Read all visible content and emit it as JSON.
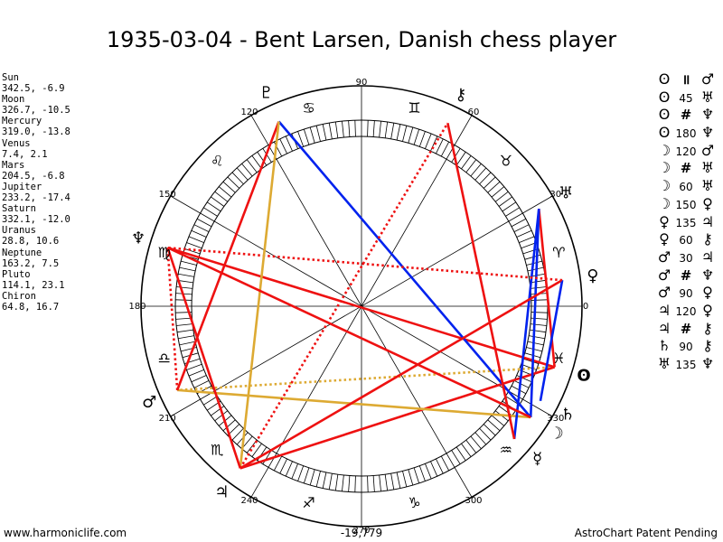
{
  "title": "1935-03-04 - Bent Larsen, Danish chess player",
  "planets": [
    {
      "name": "Sun",
      "values": "342.5, -6.9",
      "lon": 342.5,
      "glyph": "sun-icon"
    },
    {
      "name": "Moon",
      "values": "326.7, -10.5",
      "lon": 326.7,
      "glyph": "moon-icon"
    },
    {
      "name": "Mercury",
      "values": "319.0, -13.8",
      "lon": 319.0,
      "glyph": "mercury-icon"
    },
    {
      "name": "Venus",
      "values": "7.4, 2.1",
      "lon": 7.4,
      "glyph": "venus-icon"
    },
    {
      "name": "Mars",
      "values": "204.5, -6.8",
      "lon": 204.5,
      "glyph": "mars-icon"
    },
    {
      "name": "Jupiter",
      "values": "233.2, -17.4",
      "lon": 233.2,
      "glyph": "jupiter-icon"
    },
    {
      "name": "Saturn",
      "values": "332.1, -12.0",
      "lon": 332.1,
      "glyph": "saturn-icon"
    },
    {
      "name": "Uranus",
      "values": "28.8, 10.6",
      "lon": 28.8,
      "glyph": "uranus-icon"
    },
    {
      "name": "Neptune",
      "values": "163.2, 7.5",
      "lon": 163.2,
      "glyph": "neptune-icon"
    },
    {
      "name": "Pluto",
      "values": "114.1, 23.1",
      "lon": 114.1,
      "glyph": "pluto-icon"
    },
    {
      "name": "Chiron",
      "values": "64.8, 16.7",
      "lon": 64.8,
      "glyph": "chiron-icon"
    }
  ],
  "aspects": [
    {
      "p1": "Sun",
      "symbol": "॥",
      "p2": "Mars"
    },
    {
      "p1": "Sun",
      "symbol": "45",
      "p2": "Uranus"
    },
    {
      "p1": "Sun",
      "symbol": "#",
      "p2": "Neptune"
    },
    {
      "p1": "Sun",
      "symbol": "180",
      "p2": "Neptune"
    },
    {
      "p1": "Moon",
      "symbol": "120",
      "p2": "Mars"
    },
    {
      "p1": "Moon",
      "symbol": "#",
      "p2": "Uranus"
    },
    {
      "p1": "Moon",
      "symbol": "60",
      "p2": "Uranus"
    },
    {
      "p1": "Moon",
      "symbol": "150",
      "p2": "Venus"
    },
    {
      "p1": "Venus",
      "symbol": "135",
      "p2": "Jupiter"
    },
    {
      "p1": "Venus",
      "symbol": "60",
      "p2": "Chiron"
    },
    {
      "p1": "Mars",
      "symbol": "30",
      "p2": "Jupiter"
    },
    {
      "p1": "Mars",
      "symbol": "#",
      "p2": "Neptune"
    },
    {
      "p1": "Mars",
      "symbol": "90",
      "p2": "Venus"
    },
    {
      "p1": "Jupiter",
      "symbol": "120",
      "p2": "Venus"
    },
    {
      "p1": "Jupiter",
      "symbol": "#",
      "p2": "Chiron"
    },
    {
      "p1": "Saturn",
      "symbol": "90",
      "p2": "Chiron"
    },
    {
      "p1": "Uranus",
      "symbol": "135",
      "p2": "Neptune"
    }
  ],
  "glyphs": {
    "Sun": "ʘ",
    "Moon": "☽",
    "Mercury": "☿",
    "Venus": "♀",
    "Mars": "♂",
    "Jupiter": "♃",
    "Saturn": "♄",
    "Uranus": "♅",
    "Neptune": "♆",
    "Pluto": "♇",
    "Chiron": "⚷"
  },
  "degree_labels": [
    "0",
    "30",
    "60",
    "90",
    "120",
    "150",
    "180",
    "210",
    "240",
    "270",
    "300",
    "330"
  ],
  "zodiac": [
    "♈",
    "♉",
    "♊",
    "♋",
    "♌",
    "♍",
    "♎",
    "♏",
    "♐",
    "♑",
    "♒",
    "♓"
  ],
  "chart_lines": [
    {
      "a": "Sun",
      "b": "Mars",
      "color": "#ddaa33",
      "style": "dotted"
    },
    {
      "a": "Sun",
      "b": "Jupiter",
      "color": "#ee1111",
      "style": "solid"
    },
    {
      "a": "Sun",
      "b": "Neptune",
      "color": "#ee1111",
      "style": "solid"
    },
    {
      "a": "Sun",
      "b": "Uranus",
      "color": "#ee1111",
      "style": "solid"
    },
    {
      "a": "Moon",
      "b": "Mars",
      "color": "#ddaa33",
      "style": "solid"
    },
    {
      "a": "Moon",
      "b": "Pluto",
      "color": "#0022ee",
      "style": "solid"
    },
    {
      "a": "Moon",
      "b": "Uranus",
      "color": "#0022ee",
      "style": "solid"
    },
    {
      "a": "Mercury",
      "b": "Uranus",
      "color": "#0022ee",
      "style": "solid"
    },
    {
      "a": "Mercury",
      "b": "Chiron",
      "color": "#ee1111",
      "style": "solid"
    },
    {
      "a": "Venus",
      "b": "Jupiter",
      "color": "#ee1111",
      "style": "solid"
    },
    {
      "a": "Venus",
      "b": "Saturn",
      "color": "#0022ee",
      "style": "solid"
    },
    {
      "a": "Venus",
      "b": "Neptune",
      "color": "#ee1111",
      "style": "dotted"
    },
    {
      "a": "Mars",
      "b": "Pluto",
      "color": "#ee1111",
      "style": "solid"
    },
    {
      "a": "Mars",
      "b": "Neptune",
      "color": "#ee1111",
      "style": "dotted"
    },
    {
      "a": "Jupiter",
      "b": "Pluto",
      "color": "#ddaa33",
      "style": "solid"
    },
    {
      "a": "Jupiter",
      "b": "Chiron",
      "color": "#ee1111",
      "style": "dotted"
    },
    {
      "a": "Jupiter",
      "b": "Neptune",
      "color": "#ee1111",
      "style": "solid"
    },
    {
      "a": "Neptune",
      "b": "Moon",
      "color": "#ee1111",
      "style": "solid"
    }
  ],
  "footer": {
    "left": "www.harmoniclife.com",
    "center": "-19,779",
    "right": "AstroChart Patent Pending"
  }
}
